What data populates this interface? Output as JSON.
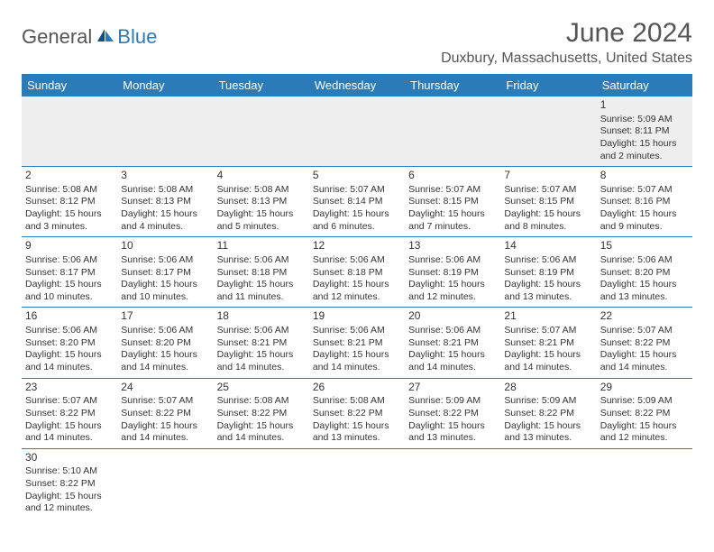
{
  "logo": {
    "text_left": "General",
    "text_right": "Blue",
    "left_color": "#555555",
    "right_color": "#2b7bb9"
  },
  "title": "June 2024",
  "location": "Duxbury, Massachusetts, United States",
  "header_bg": "#2b7bb9",
  "header_text_color": "#ffffff",
  "border_color": "#2b7bb9",
  "first_week_bg": "#eeeeee",
  "day_headers": [
    "Sunday",
    "Monday",
    "Tuesday",
    "Wednesday",
    "Thursday",
    "Friday",
    "Saturday"
  ],
  "weeks": [
    [
      null,
      null,
      null,
      null,
      null,
      null,
      {
        "num": "1",
        "sunrise": "Sunrise: 5:09 AM",
        "sunset": "Sunset: 8:11 PM",
        "daylight": "Daylight: 15 hours and 2 minutes."
      }
    ],
    [
      {
        "num": "2",
        "sunrise": "Sunrise: 5:08 AM",
        "sunset": "Sunset: 8:12 PM",
        "daylight": "Daylight: 15 hours and 3 minutes."
      },
      {
        "num": "3",
        "sunrise": "Sunrise: 5:08 AM",
        "sunset": "Sunset: 8:13 PM",
        "daylight": "Daylight: 15 hours and 4 minutes."
      },
      {
        "num": "4",
        "sunrise": "Sunrise: 5:08 AM",
        "sunset": "Sunset: 8:13 PM",
        "daylight": "Daylight: 15 hours and 5 minutes."
      },
      {
        "num": "5",
        "sunrise": "Sunrise: 5:07 AM",
        "sunset": "Sunset: 8:14 PM",
        "daylight": "Daylight: 15 hours and 6 minutes."
      },
      {
        "num": "6",
        "sunrise": "Sunrise: 5:07 AM",
        "sunset": "Sunset: 8:15 PM",
        "daylight": "Daylight: 15 hours and 7 minutes."
      },
      {
        "num": "7",
        "sunrise": "Sunrise: 5:07 AM",
        "sunset": "Sunset: 8:15 PM",
        "daylight": "Daylight: 15 hours and 8 minutes."
      },
      {
        "num": "8",
        "sunrise": "Sunrise: 5:07 AM",
        "sunset": "Sunset: 8:16 PM",
        "daylight": "Daylight: 15 hours and 9 minutes."
      }
    ],
    [
      {
        "num": "9",
        "sunrise": "Sunrise: 5:06 AM",
        "sunset": "Sunset: 8:17 PM",
        "daylight": "Daylight: 15 hours and 10 minutes."
      },
      {
        "num": "10",
        "sunrise": "Sunrise: 5:06 AM",
        "sunset": "Sunset: 8:17 PM",
        "daylight": "Daylight: 15 hours and 10 minutes."
      },
      {
        "num": "11",
        "sunrise": "Sunrise: 5:06 AM",
        "sunset": "Sunset: 8:18 PM",
        "daylight": "Daylight: 15 hours and 11 minutes."
      },
      {
        "num": "12",
        "sunrise": "Sunrise: 5:06 AM",
        "sunset": "Sunset: 8:18 PM",
        "daylight": "Daylight: 15 hours and 12 minutes."
      },
      {
        "num": "13",
        "sunrise": "Sunrise: 5:06 AM",
        "sunset": "Sunset: 8:19 PM",
        "daylight": "Daylight: 15 hours and 12 minutes."
      },
      {
        "num": "14",
        "sunrise": "Sunrise: 5:06 AM",
        "sunset": "Sunset: 8:19 PM",
        "daylight": "Daylight: 15 hours and 13 minutes."
      },
      {
        "num": "15",
        "sunrise": "Sunrise: 5:06 AM",
        "sunset": "Sunset: 8:20 PM",
        "daylight": "Daylight: 15 hours and 13 minutes."
      }
    ],
    [
      {
        "num": "16",
        "sunrise": "Sunrise: 5:06 AM",
        "sunset": "Sunset: 8:20 PM",
        "daylight": "Daylight: 15 hours and 14 minutes."
      },
      {
        "num": "17",
        "sunrise": "Sunrise: 5:06 AM",
        "sunset": "Sunset: 8:20 PM",
        "daylight": "Daylight: 15 hours and 14 minutes."
      },
      {
        "num": "18",
        "sunrise": "Sunrise: 5:06 AM",
        "sunset": "Sunset: 8:21 PM",
        "daylight": "Daylight: 15 hours and 14 minutes."
      },
      {
        "num": "19",
        "sunrise": "Sunrise: 5:06 AM",
        "sunset": "Sunset: 8:21 PM",
        "daylight": "Daylight: 15 hours and 14 minutes."
      },
      {
        "num": "20",
        "sunrise": "Sunrise: 5:06 AM",
        "sunset": "Sunset: 8:21 PM",
        "daylight": "Daylight: 15 hours and 14 minutes."
      },
      {
        "num": "21",
        "sunrise": "Sunrise: 5:07 AM",
        "sunset": "Sunset: 8:21 PM",
        "daylight": "Daylight: 15 hours and 14 minutes."
      },
      {
        "num": "22",
        "sunrise": "Sunrise: 5:07 AM",
        "sunset": "Sunset: 8:22 PM",
        "daylight": "Daylight: 15 hours and 14 minutes."
      }
    ],
    [
      {
        "num": "23",
        "sunrise": "Sunrise: 5:07 AM",
        "sunset": "Sunset: 8:22 PM",
        "daylight": "Daylight: 15 hours and 14 minutes."
      },
      {
        "num": "24",
        "sunrise": "Sunrise: 5:07 AM",
        "sunset": "Sunset: 8:22 PM",
        "daylight": "Daylight: 15 hours and 14 minutes."
      },
      {
        "num": "25",
        "sunrise": "Sunrise: 5:08 AM",
        "sunset": "Sunset: 8:22 PM",
        "daylight": "Daylight: 15 hours and 14 minutes."
      },
      {
        "num": "26",
        "sunrise": "Sunrise: 5:08 AM",
        "sunset": "Sunset: 8:22 PM",
        "daylight": "Daylight: 15 hours and 13 minutes."
      },
      {
        "num": "27",
        "sunrise": "Sunrise: 5:09 AM",
        "sunset": "Sunset: 8:22 PM",
        "daylight": "Daylight: 15 hours and 13 minutes."
      },
      {
        "num": "28",
        "sunrise": "Sunrise: 5:09 AM",
        "sunset": "Sunset: 8:22 PM",
        "daylight": "Daylight: 15 hours and 13 minutes."
      },
      {
        "num": "29",
        "sunrise": "Sunrise: 5:09 AM",
        "sunset": "Sunset: 8:22 PM",
        "daylight": "Daylight: 15 hours and 12 minutes."
      }
    ],
    [
      {
        "num": "30",
        "sunrise": "Sunrise: 5:10 AM",
        "sunset": "Sunset: 8:22 PM",
        "daylight": "Daylight: 15 hours and 12 minutes."
      },
      null,
      null,
      null,
      null,
      null,
      null
    ]
  ]
}
